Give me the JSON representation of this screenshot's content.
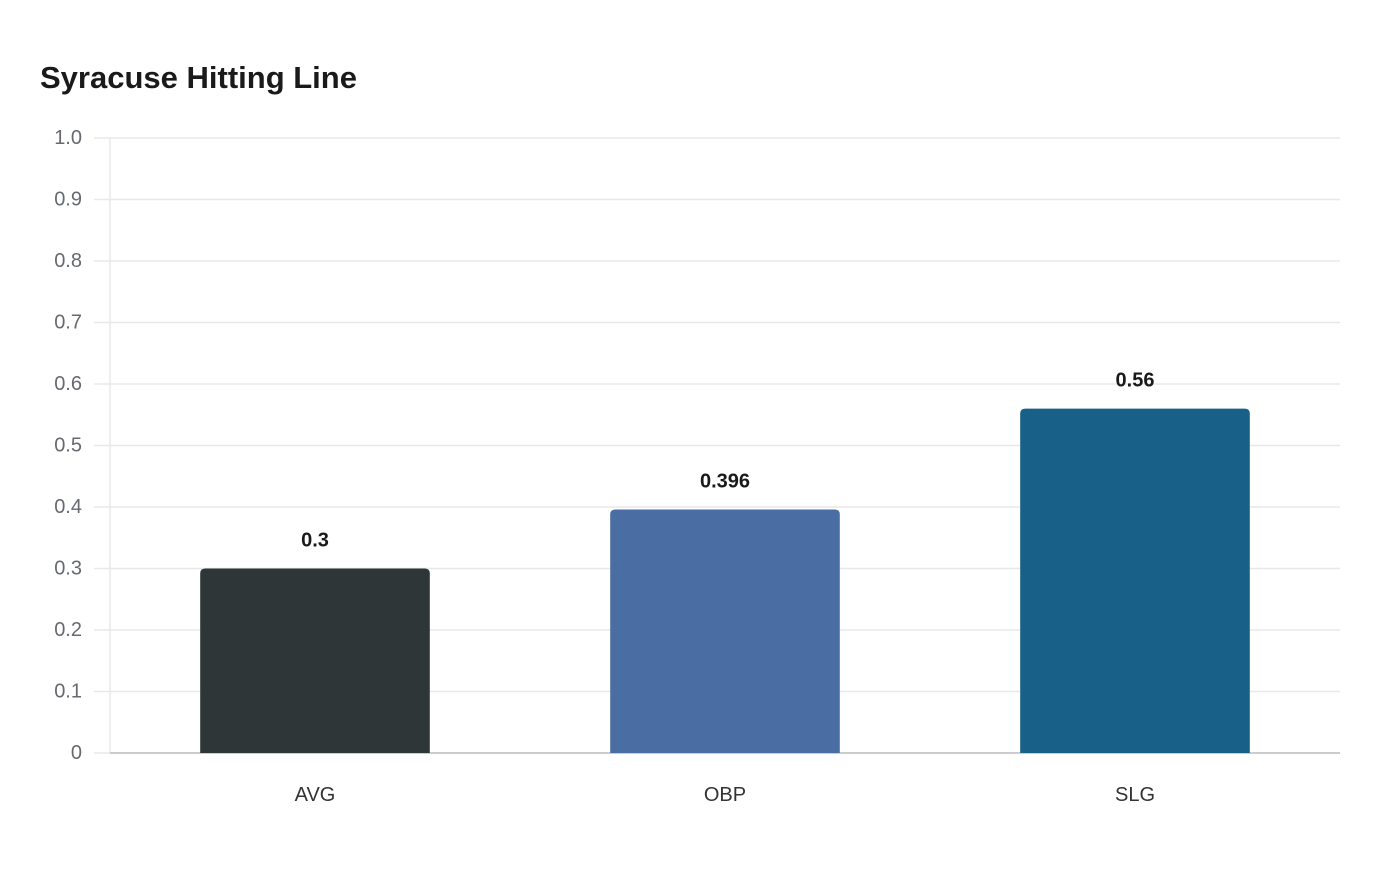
{
  "chart_data": {
    "type": "bar",
    "title": "Syracuse Hitting Line",
    "xlabel": "",
    "ylabel": "",
    "categories": [
      "AVG",
      "OBP",
      "SLG"
    ],
    "values": [
      0.3,
      0.396,
      0.56
    ],
    "data_labels": [
      "0.3",
      "0.396",
      "0.56"
    ],
    "colors": [
      "#2e3638",
      "#4a6ea3",
      "#186088"
    ],
    "ylim": [
      0,
      1.0
    ],
    "y_ticks": [
      0,
      0.1,
      0.2,
      0.3,
      0.4,
      0.5,
      0.6,
      0.7,
      0.8,
      0.9,
      1.0
    ],
    "y_tick_labels": [
      "0",
      "0.1",
      "0.2",
      "0.3",
      "0.4",
      "0.5",
      "0.6",
      "0.7",
      "0.8",
      "0.9",
      "1.0"
    ],
    "grid": true,
    "legend": "none",
    "gridline_color": "#e8e8e8",
    "axis_color": "#cccccc"
  }
}
